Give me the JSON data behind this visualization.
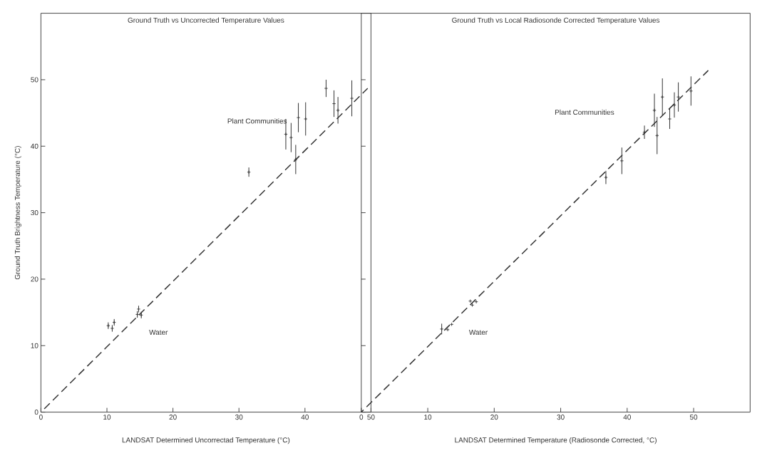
{
  "chart_data": [
    {
      "type": "scatter",
      "title": "Ground Truth vs Uncorrected Temperature Values",
      "xlabel": "LANDSAT Determined Uncorrectad Temperature (°C)",
      "ylabel": "Ground Truth Brightness Temperature (°C)",
      "xlim": [
        0,
        50
      ],
      "ylim": [
        0,
        60
      ],
      "xticks": [
        0,
        10,
        20,
        30,
        40,
        50
      ],
      "yticks": [
        0,
        10,
        20,
        30,
        40,
        50
      ],
      "series": [
        {
          "color": "#333333",
          "marker": "cross",
          "x": [
            10.2,
            10.8,
            11.1,
            14.6,
            14.8,
            15.2,
            31.5,
            37.1,
            37.9,
            38.6,
            39.0,
            40.1,
            43.2,
            44.4,
            45.0,
            47.1
          ],
          "values": [
            13.0,
            12.6,
            13.5,
            14.7,
            15.5,
            14.6,
            36.1,
            41.8,
            41.3,
            38.0,
            44.3,
            44.1,
            48.7,
            46.4,
            45.4,
            47.2
          ],
          "errors": [
            0.5,
            0.5,
            0.5,
            0.5,
            0.5,
            0.5,
            0.7,
            2.3,
            2.2,
            2.2,
            2.2,
            2.5,
            1.3,
            2.0,
            2.0,
            2.7
          ]
        },
        {
          "type": "line",
          "color": "#333333",
          "line_style": "dashed",
          "x": [
            0,
            49.5
          ],
          "values": [
            0,
            48.7
          ]
        }
      ],
      "annotations": [
        "Plant Communities",
        "Water"
      ]
    },
    {
      "type": "scatter",
      "title": "Ground Truth vs Local Radiosonde Corrected Temperature Values",
      "xlabel": "LANDSAT Determined Temperature (Radiosonde Corrected, °C)",
      "xlim": [
        0,
        58.5
      ],
      "ylim": [
        0,
        60
      ],
      "xticks": [
        0,
        10,
        20,
        30,
        40,
        50
      ],
      "yticks": [
        0,
        10,
        20,
        30,
        40,
        50
      ],
      "tick_labels": "x",
      "series": [
        {
          "color": "#333333",
          "marker": "cross",
          "x": [
            12.1,
            13.0,
            13.6,
            16.4,
            16.7,
            17.3,
            36.8,
            39.2,
            42.6,
            44.1,
            44.5,
            45.3,
            46.4,
            47.1,
            47.7,
            49.6
          ],
          "values": [
            12.5,
            12.4,
            13.2,
            16.7,
            16.1,
            16.6,
            35.3,
            37.8,
            42.1,
            45.4,
            41.6,
            47.4,
            44.1,
            46.2,
            47.4,
            48.3
          ],
          "errors": [
            0.8,
            null,
            null,
            null,
            null,
            null,
            1.0,
            2.0,
            1.0,
            2.5,
            2.8,
            2.8,
            1.5,
            1.9,
            2.2,
            2.2
          ]
        },
        {
          "type": "line",
          "color": "#333333",
          "line_style": "dashed",
          "x": [
            0,
            52.2
          ],
          "values": [
            0,
            51.4
          ]
        }
      ],
      "annotations": [
        "Plant Communities",
        "Water"
      ]
    }
  ]
}
